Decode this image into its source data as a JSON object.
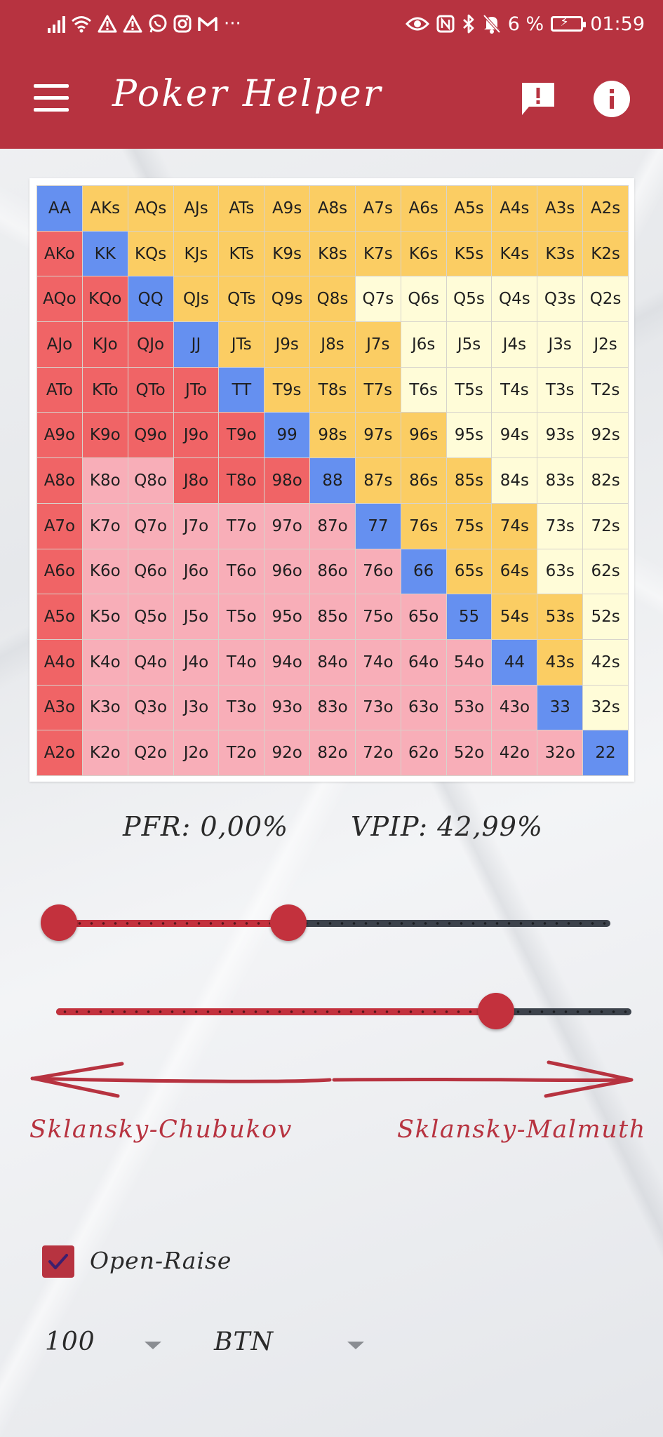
{
  "status_bar": {
    "left_icons": [
      "signal-bars-icon",
      "wifi-icon",
      "warning-icon",
      "warning-icon",
      "whatsapp-icon",
      "instagram-icon",
      "gmail-icon",
      "more-notifications-icon"
    ],
    "more": "···",
    "right_icons": [
      "eye-icon",
      "nfc-icon",
      "bluetooth-icon",
      "bell-muted-icon",
      "battery-icon"
    ],
    "battery_text": "6 %",
    "time": "01:59"
  },
  "app_bar": {
    "title": "Poker Helper",
    "menu_icon": "menu-icon",
    "feedback_icon": "feedback-icon",
    "info_icon": "info-icon",
    "color": "#b73340"
  },
  "colors": {
    "pair": "#6590f0",
    "suited_strong": "#fbcd63",
    "suited_weak": "#fffcd8",
    "offsuit_strong": "#f06466",
    "offsuit_weak": "#f8aeb8"
  },
  "grid": {
    "labels": [
      [
        "AA",
        "AKs",
        "AQs",
        "AJs",
        "ATs",
        "A9s",
        "A8s",
        "A7s",
        "A6s",
        "A5s",
        "A4s",
        "A3s",
        "A2s"
      ],
      [
        "AKo",
        "KK",
        "KQs",
        "KJs",
        "KTs",
        "K9s",
        "K8s",
        "K7s",
        "K6s",
        "K5s",
        "K4s",
        "K3s",
        "K2s"
      ],
      [
        "AQo",
        "KQo",
        "QQ",
        "QJs",
        "QTs",
        "Q9s",
        "Q8s",
        "Q7s",
        "Q6s",
        "Q5s",
        "Q4s",
        "Q3s",
        "Q2s"
      ],
      [
        "AJo",
        "KJo",
        "QJo",
        "JJ",
        "JTs",
        "J9s",
        "J8s",
        "J7s",
        "J6s",
        "J5s",
        "J4s",
        "J3s",
        "J2s"
      ],
      [
        "ATo",
        "KTo",
        "QTo",
        "JTo",
        "TT",
        "T9s",
        "T8s",
        "T7s",
        "T6s",
        "T5s",
        "T4s",
        "T3s",
        "T2s"
      ],
      [
        "A9o",
        "K9o",
        "Q9o",
        "J9o",
        "T9o",
        "99",
        "98s",
        "97s",
        "96s",
        "95s",
        "94s",
        "93s",
        "92s"
      ],
      [
        "A8o",
        "K8o",
        "Q8o",
        "J8o",
        "T8o",
        "98o",
        "88",
        "87s",
        "86s",
        "85s",
        "84s",
        "83s",
        "82s"
      ],
      [
        "A7o",
        "K7o",
        "Q7o",
        "J7o",
        "T7o",
        "97o",
        "87o",
        "77",
        "76s",
        "75s",
        "74s",
        "73s",
        "72s"
      ],
      [
        "A6o",
        "K6o",
        "Q6o",
        "J6o",
        "T6o",
        "96o",
        "86o",
        "76o",
        "66",
        "65s",
        "64s",
        "63s",
        "62s"
      ],
      [
        "A5o",
        "K5o",
        "Q5o",
        "J5o",
        "T5o",
        "95o",
        "85o",
        "75o",
        "65o",
        "55",
        "54s",
        "53s",
        "52s"
      ],
      [
        "A4o",
        "K4o",
        "Q4o",
        "J4o",
        "T4o",
        "94o",
        "84o",
        "74o",
        "64o",
        "54o",
        "44",
        "43s",
        "42s"
      ],
      [
        "A3o",
        "K3o",
        "Q3o",
        "J3o",
        "T3o",
        "93o",
        "83o",
        "73o",
        "63o",
        "53o",
        "43o",
        "33",
        "32s"
      ],
      [
        "A2o",
        "K2o",
        "Q2o",
        "J2o",
        "T2o",
        "92o",
        "82o",
        "72o",
        "62o",
        "52o",
        "42o",
        "32o",
        "22"
      ]
    ],
    "color_codes": [
      "PSSSSSSSSSSSS",
      "RPSSSSSSSSSSS",
      "RRPSSSSLLLLLL",
      "RRRPSSSSLLLLL",
      "RRRRPSSSLLLLL",
      "RRRRRPSSSLLLL",
      "RKKRRRPSSSLLL",
      "RKKKKKKPSSSLL",
      "RKKKKKKKPSSLL",
      "RKKKKKKKKPSSL",
      "RKKKKKKKKKPSL",
      "RKKKKKKKKKKPL",
      "RKKKKKKKKKKKP"
    ]
  },
  "stats": {
    "pfr": "PFR: 0,00%",
    "vpip": "VPIP: 42,99%"
  },
  "sliders": {
    "top": {
      "range_start": 0.0,
      "range_end": 0.43
    },
    "bottom": {
      "value": 0.79
    }
  },
  "scale": {
    "left_label": "Sklansky-Chubukov",
    "right_label": "Sklansky-Malmuth"
  },
  "options": {
    "open_raise_label": "Open-Raise",
    "open_raise_checked": true,
    "stack_value": "100",
    "position_value": "BTN"
  }
}
